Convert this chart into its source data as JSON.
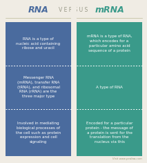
{
  "title_rna": "RNA",
  "title_versus": "V E R S U S",
  "title_mrna": "mRNA",
  "background_color": "#f0ece4",
  "left_color": "#4a6b9e",
  "right_color": "#3a9a8a",
  "text_color": "#ffffff",
  "header_rna_color": "#4a6b9e",
  "header_mrna_color": "#3a9a8a",
  "header_versus_color": "#999988",
  "dashed_line_color": "#ffffff",
  "left_cells": [
    "RNA is a type of\nnucleic acid containing\nribose and uracil",
    "Messenger RNA\n(mRNA), transfer RNA\n(tRNA), and ribosomal\nRNA (rRNA) are the\nthree major type",
    "Involved in mediating\nbiological processes of\nthe cell such as protein\nexpression and cell\nsignaling"
  ],
  "right_cells": [
    "mRNA is a type of RNA,\nwhich encodes for a\nparticular amino acid\nsequence of a protein",
    "A type of RNA",
    "Encoded for a particular\nprotein - the message of\na protein is sent for the\ntranslation from the\nnucleus via this"
  ],
  "watermark": "Visit www.pediaa.com",
  "fig_width": 2.13,
  "fig_height": 2.36
}
